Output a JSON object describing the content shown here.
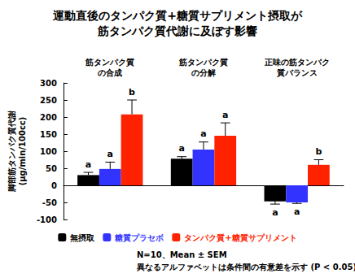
{
  "chart_data": {
    "type": "bar",
    "title": "運動直後のタンパク質+糖質サプリメント摂取が\n筋タンパク質代謝に及ぼす影響",
    "y_label": "脚部筋タンパク質代謝\n(μg/min/100cc)",
    "categories": [
      "筋タンパク質\nの合成",
      "筋タンパク質\nの分解",
      "正味の筋タンパク\n質バランス"
    ],
    "series": [
      {
        "name": "無摂取",
        "color": "#000000",
        "values": [
          30,
          78,
          -47
        ],
        "errors": [
          8,
          6,
          8
        ],
        "letters": [
          "a",
          "a",
          "a"
        ]
      },
      {
        "name": "糖質プラセボ",
        "color": "#3333ff",
        "values": [
          48,
          105,
          -50
        ],
        "errors": [
          20,
          22,
          3
        ],
        "letters": [
          "a",
          "a",
          "a"
        ]
      },
      {
        "name": "タンパク質+糖質サプリメント",
        "color": "#ff2200",
        "values": [
          208,
          145,
          60
        ],
        "errors": [
          42,
          38,
          15
        ],
        "letters": [
          "b",
          "a",
          "b"
        ]
      }
    ],
    "ylim": [
      -100,
      300
    ],
    "yticks": [
      -100,
      -50,
      0,
      50,
      100,
      150,
      200,
      250,
      300
    ],
    "grid": false,
    "legend": "bottom",
    "annotations": [
      "N=10、Mean ± SEM",
      "異なるアルファベットは条件間の有意差を示す (P < 0.05)"
    ]
  }
}
